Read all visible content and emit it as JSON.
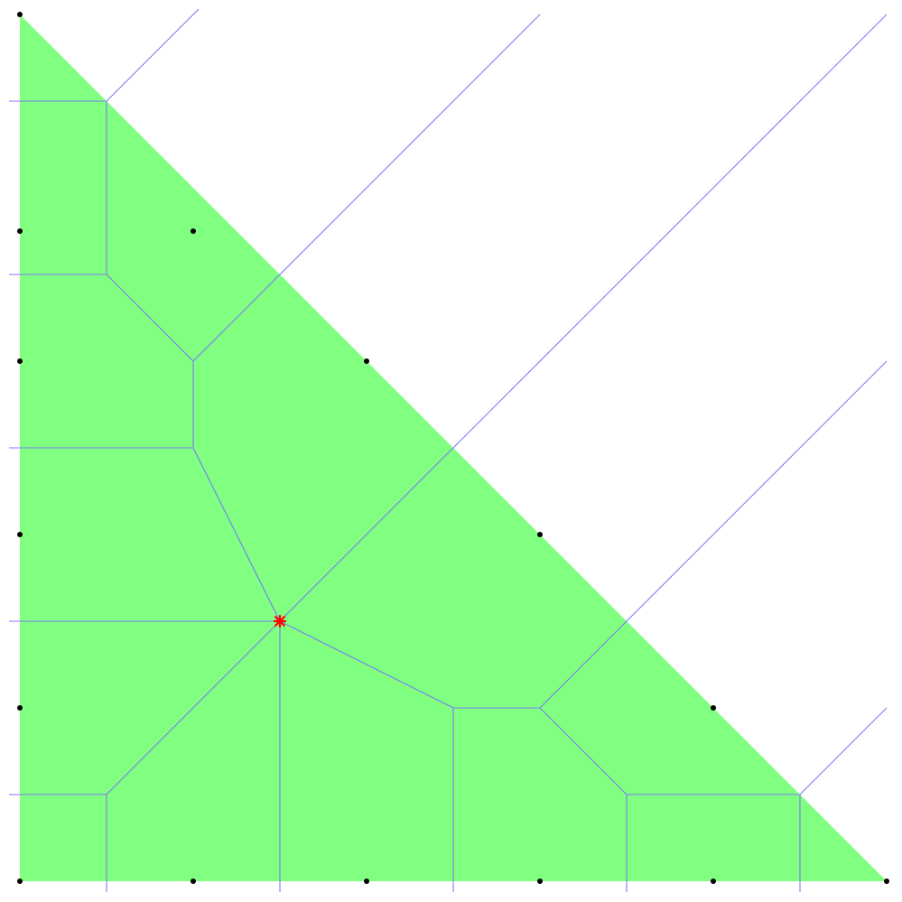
{
  "colors": {
    "background": "#ffffff",
    "fill": "#80ff80",
    "edge": "#7b7bf5",
    "site": "#000000",
    "marker": "#ff0000"
  },
  "region": [
    [
      0,
      0
    ],
    [
      8,
      0
    ],
    [
      0,
      8
    ]
  ],
  "sites": [
    [
      0,
      8
    ],
    [
      0,
      6
    ],
    [
      1.6,
      6
    ],
    [
      0,
      4.8
    ],
    [
      3.2,
      4.8
    ],
    [
      0,
      3.2
    ],
    [
      4.8,
      3.2
    ],
    [
      0,
      1.6
    ],
    [
      6.4,
      1.6
    ],
    [
      0,
      0
    ],
    [
      1.6,
      0
    ],
    [
      3.2,
      0
    ],
    [
      4.8,
      0
    ],
    [
      6.4,
      0
    ],
    [
      8,
      0
    ]
  ],
  "edges": [
    [
      [
        -0.1,
        7.2
      ],
      [
        0.8,
        7.2
      ]
    ],
    [
      [
        0.8,
        7.2
      ],
      [
        1.65,
        8.05
      ]
    ],
    [
      [
        0.8,
        7.2
      ],
      [
        0.8,
        5.6
      ]
    ],
    [
      [
        -0.1,
        5.6
      ],
      [
        0.8,
        5.6
      ]
    ],
    [
      [
        0.8,
        5.6
      ],
      [
        1.6,
        4.8
      ]
    ],
    [
      [
        1.6,
        4.8
      ],
      [
        4.8,
        8.0
      ]
    ],
    [
      [
        1.6,
        4.8
      ],
      [
        1.6,
        4.0
      ]
    ],
    [
      [
        -0.1,
        4.0
      ],
      [
        1.6,
        4.0
      ]
    ],
    [
      [
        1.6,
        4.0
      ],
      [
        2.4,
        2.4
      ]
    ],
    [
      [
        2.4,
        2.4
      ],
      [
        8.0,
        8.0
      ]
    ],
    [
      [
        -0.1,
        2.4
      ],
      [
        2.4,
        2.4
      ]
    ],
    [
      [
        2.4,
        2.4
      ],
      [
        0.8,
        0.8
      ]
    ],
    [
      [
        -0.1,
        0.8
      ],
      [
        0.8,
        0.8
      ]
    ],
    [
      [
        0.8,
        0.8
      ],
      [
        0.8,
        -0.1
      ]
    ],
    [
      [
        2.4,
        2.4
      ],
      [
        2.4,
        -0.1
      ]
    ],
    [
      [
        2.4,
        2.4
      ],
      [
        4.0,
        1.6
      ]
    ],
    [
      [
        4.0,
        1.6
      ],
      [
        4.0,
        -0.1
      ]
    ],
    [
      [
        4.0,
        1.6
      ],
      [
        4.8,
        1.6
      ]
    ],
    [
      [
        4.8,
        1.6
      ],
      [
        8.0,
        4.8
      ]
    ],
    [
      [
        4.8,
        1.6
      ],
      [
        5.6,
        0.8
      ]
    ],
    [
      [
        5.6,
        0.8
      ],
      [
        5.6,
        -0.1
      ]
    ],
    [
      [
        5.6,
        0.8
      ],
      [
        7.2,
        0.8
      ]
    ],
    [
      [
        7.2,
        0.8
      ],
      [
        7.2,
        -0.1
      ]
    ],
    [
      [
        7.2,
        0.8
      ],
      [
        8.0,
        1.6
      ]
    ]
  ],
  "marker": [
    2.4,
    2.4
  ]
}
